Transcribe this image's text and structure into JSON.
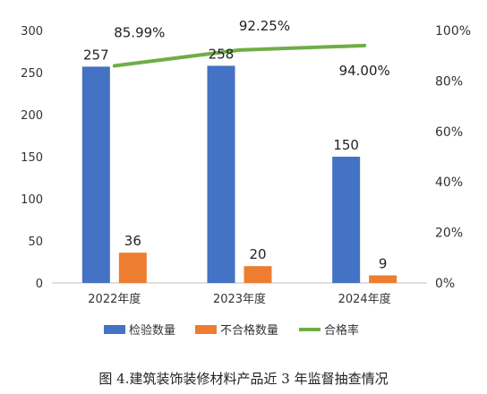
{
  "chart_data": {
    "type": "bar",
    "categories": [
      "2022年度",
      "2023年度",
      "2024年度"
    ],
    "series": [
      {
        "name": "检验数量",
        "kind": "bar",
        "axis": "left",
        "color": "#4472C4",
        "values": [
          257,
          258,
          150
        ],
        "labels": [
          "257",
          "258",
          "150"
        ]
      },
      {
        "name": "不合格数量",
        "kind": "bar",
        "axis": "left",
        "color": "#ED7D31",
        "values": [
          36,
          20,
          9
        ],
        "labels": [
          "36",
          "20",
          "9"
        ]
      },
      {
        "name": "合格率",
        "kind": "line",
        "axis": "right",
        "color": "#70AD47",
        "values": [
          85.99,
          92.25,
          94.0
        ],
        "labels": [
          "85.99%",
          "92.25%",
          "94.00%"
        ]
      }
    ],
    "y_left": {
      "min": 0,
      "max": 300,
      "ticks": [
        "0",
        "50",
        "100",
        "150",
        "200",
        "250",
        "300"
      ]
    },
    "y_right": {
      "min": 0,
      "max": 100,
      "ticks": [
        "0%",
        "20%",
        "40%",
        "60%",
        "80%",
        "100%"
      ]
    },
    "grid": false,
    "legend_position": "bottom",
    "caption": "图 4.建筑装饰装修材料产品近 3 年监督抽查情况"
  }
}
